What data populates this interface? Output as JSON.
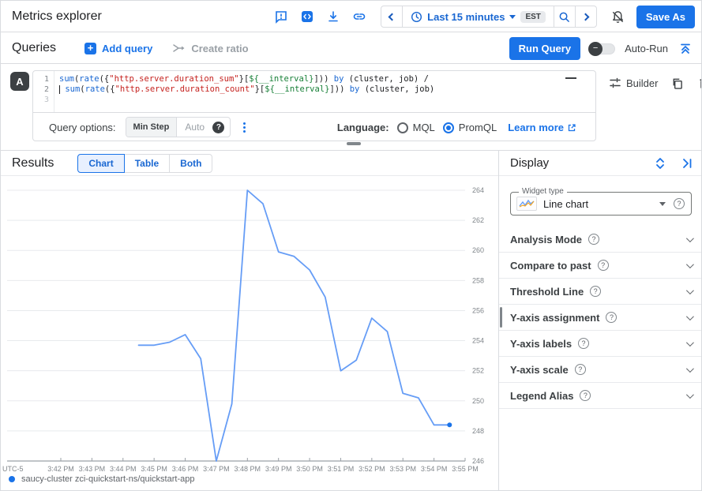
{
  "header": {
    "title": "Metrics explorer",
    "time_range": {
      "label": "Last 15 minutes",
      "timezone": "EST"
    },
    "save_as_label": "Save As",
    "icons": {
      "feedback-icon": "outlined square with exclamation",
      "code-icon": "filled square with angle brackets",
      "download-icon": "arrow into tray",
      "link-icon": "chain link",
      "chevron-left-icon": "<",
      "clock-icon": "clock face",
      "zoom-icon": "magnifier",
      "chevron-right-icon": ">",
      "notifications-off-icon": "bell with slash"
    }
  },
  "queries_bar": {
    "title": "Queries",
    "add_query_label": "Add query",
    "create_ratio_label": "Create ratio",
    "run_query_label": "Run Query",
    "auto_run_label": "Auto-Run"
  },
  "query_editor": {
    "badge": "A",
    "line_numbers": [
      "1",
      "2",
      "3"
    ],
    "lines": [
      [
        {
          "t": "sum",
          "c": "kw"
        },
        {
          "t": "(",
          "c": "pun"
        },
        {
          "t": "rate",
          "c": "kw"
        },
        {
          "t": "({",
          "c": "pun"
        },
        {
          "t": "\"http.server.duration_sum\"",
          "c": "str"
        },
        {
          "t": "}[",
          "c": "pun"
        },
        {
          "t": "${__interval}",
          "c": "var"
        },
        {
          "t": "])) ",
          "c": "pun"
        },
        {
          "t": "by",
          "c": "kw"
        },
        {
          "t": " (cluster, job) /",
          "c": "pun"
        }
      ],
      [
        {
          "t": "",
          "c": "cursor"
        },
        {
          "t": " ",
          "c": "pun"
        },
        {
          "t": "sum",
          "c": "kw"
        },
        {
          "t": "(",
          "c": "pun"
        },
        {
          "t": "rate",
          "c": "kw"
        },
        {
          "t": "({",
          "c": "pun"
        },
        {
          "t": "\"http.server.duration_count\"",
          "c": "str"
        },
        {
          "t": "}[",
          "c": "pun"
        },
        {
          "t": "${__interval}",
          "c": "var"
        },
        {
          "t": "])) ",
          "c": "pun"
        },
        {
          "t": "by",
          "c": "kw"
        },
        {
          "t": " (cluster, job)",
          "c": "pun"
        }
      ],
      []
    ],
    "builder_label": "Builder"
  },
  "query_options": {
    "label": "Query options:",
    "min_step_label": "Min Step",
    "min_step_value": "Auto",
    "language_label": "Language:",
    "languages": [
      {
        "label": "MQL",
        "selected": false
      },
      {
        "label": "PromQL",
        "selected": true
      }
    ],
    "learn_more_label": "Learn more"
  },
  "results": {
    "title": "Results",
    "tabs": [
      {
        "label": "Chart",
        "selected": true
      },
      {
        "label": "Table",
        "selected": false
      },
      {
        "label": "Both",
        "selected": false
      }
    ],
    "legend": {
      "series_label": "saucy-cluster zci-quickstart-ns/quickstart-app",
      "color": "#1a73e8"
    }
  },
  "display_panel": {
    "title": "Display",
    "widget_type": {
      "label": "Widget type",
      "value": "Line chart"
    },
    "sections": [
      "Analysis Mode",
      "Compare to past",
      "Threshold Line",
      "Y-axis assignment",
      "Y-axis labels",
      "Y-axis scale",
      "Legend Alias"
    ]
  },
  "chart_data": {
    "type": "line",
    "title": "",
    "xlabel": "",
    "ylabel": "",
    "timezone_label": "UTC-5",
    "x_ticks": [
      "3:42 PM",
      "3:43 PM",
      "3:44 PM",
      "3:45 PM",
      "3:46 PM",
      "3:47 PM",
      "3:48 PM",
      "3:49 PM",
      "3:50 PM",
      "3:51 PM",
      "3:52 PM",
      "3:53 PM",
      "3:54 PM",
      "3:55 PM"
    ],
    "y_ticks": [
      264,
      262,
      260,
      258,
      256,
      254,
      252,
      250,
      248,
      246
    ],
    "ylim": [
      246,
      264
    ],
    "grid": true,
    "legend_position": "bottom",
    "x": [
      "3:44:30",
      "3:45:00",
      "3:45:30",
      "3:46:00",
      "3:46:30",
      "3:47:00",
      "3:47:30",
      "3:48:00",
      "3:48:30",
      "3:49:00",
      "3:49:30",
      "3:50:00",
      "3:50:30",
      "3:51:00",
      "3:51:30",
      "3:52:00",
      "3:52:30",
      "3:53:00",
      "3:53:30",
      "3:54:00",
      "3:54:30"
    ],
    "series": [
      {
        "name": "saucy-cluster zci-quickstart-ns/quickstart-app",
        "color": "#669df6",
        "dot_color": "#1a73e8",
        "values": [
          253.7,
          253.7,
          253.9,
          254.4,
          252.8,
          246.0,
          249.8,
          264.0,
          263.1,
          259.9,
          259.6,
          258.7,
          256.9,
          252.0,
          252.7,
          255.5,
          254.6,
          250.5,
          250.2,
          248.4,
          248.4
        ]
      }
    ]
  }
}
